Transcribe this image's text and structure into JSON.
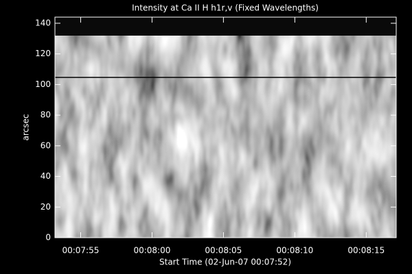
{
  "chart_data": {
    "type": "image",
    "title": "Intensity at Ca II H h1r,v (Fixed Wavelengths)",
    "x_label": "Start Time (02-Jun-07 00:07:52)",
    "y_label": "arcsec",
    "xlim": [
      1.2,
      25.1
    ],
    "xticks": [
      {
        "value": 3,
        "label": "00:07:55"
      },
      {
        "value": 8,
        "label": "00:08:00"
      },
      {
        "value": 13,
        "label": "00:08:05"
      },
      {
        "value": 18,
        "label": "00:08:10"
      },
      {
        "value": 23,
        "label": "00:08:15"
      }
    ],
    "ylim": [
      0,
      144
    ],
    "yticks": [
      0,
      20,
      40,
      60,
      80,
      100,
      120,
      140
    ]
  }
}
